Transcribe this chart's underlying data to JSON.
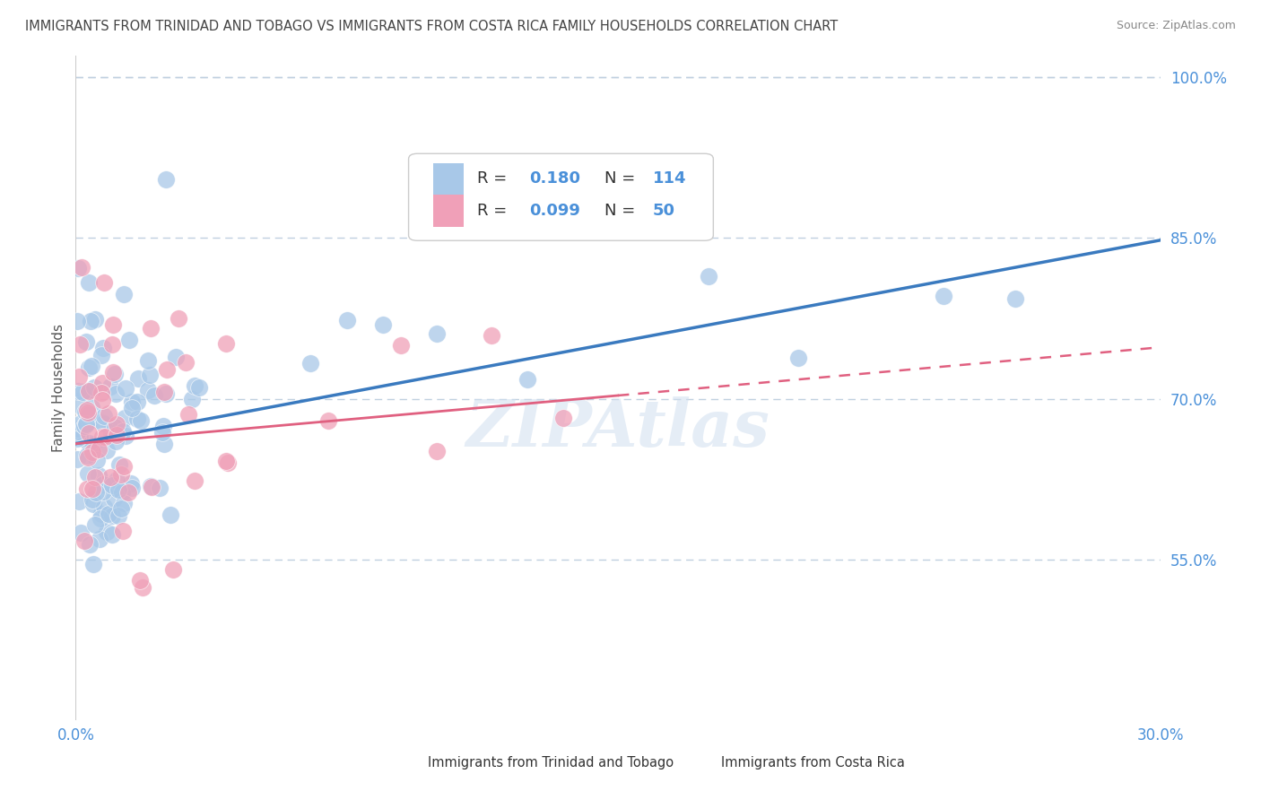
{
  "title": "IMMIGRANTS FROM TRINIDAD AND TOBAGO VS IMMIGRANTS FROM COSTA RICA FAMILY HOUSEHOLDS CORRELATION CHART",
  "source": "Source: ZipAtlas.com",
  "ylabel": "Family Households",
  "xlim": [
    0.0,
    0.3
  ],
  "ylim": [
    0.4,
    1.02
  ],
  "yticks": [
    0.55,
    0.7,
    0.85,
    1.0
  ],
  "ytick_labels": [
    "55.0%",
    "70.0%",
    "85.0%",
    "100.0%"
  ],
  "xticks": [
    0.0,
    0.3
  ],
  "xtick_labels": [
    "0.0%",
    "30.0%"
  ],
  "legend1_R": "0.180",
  "legend1_N": "114",
  "legend2_R": "0.099",
  "legend2_N": "50",
  "series1_color": "#a8c8e8",
  "series2_color": "#f0a0b8",
  "line1_color": "#3a7abf",
  "line2_color": "#e06080",
  "legend_label1": "Immigrants from Trinidad and Tobago",
  "legend_label2": "Immigrants from Costa Rica",
  "watermark": "ZIPAtlas",
  "background_color": "#ffffff",
  "grid_color": "#c0d0e0",
  "title_color": "#444444",
  "axis_label_color": "#4a90d9",
  "trend1_x0": 0.0,
  "trend1_y0": 0.658,
  "trend1_x1": 0.3,
  "trend1_y1": 0.848,
  "trend2_x0": 0.0,
  "trend2_y0": 0.658,
  "trend2_x1": 0.3,
  "trend2_y1": 0.748,
  "trend2_solid_end": 0.15
}
